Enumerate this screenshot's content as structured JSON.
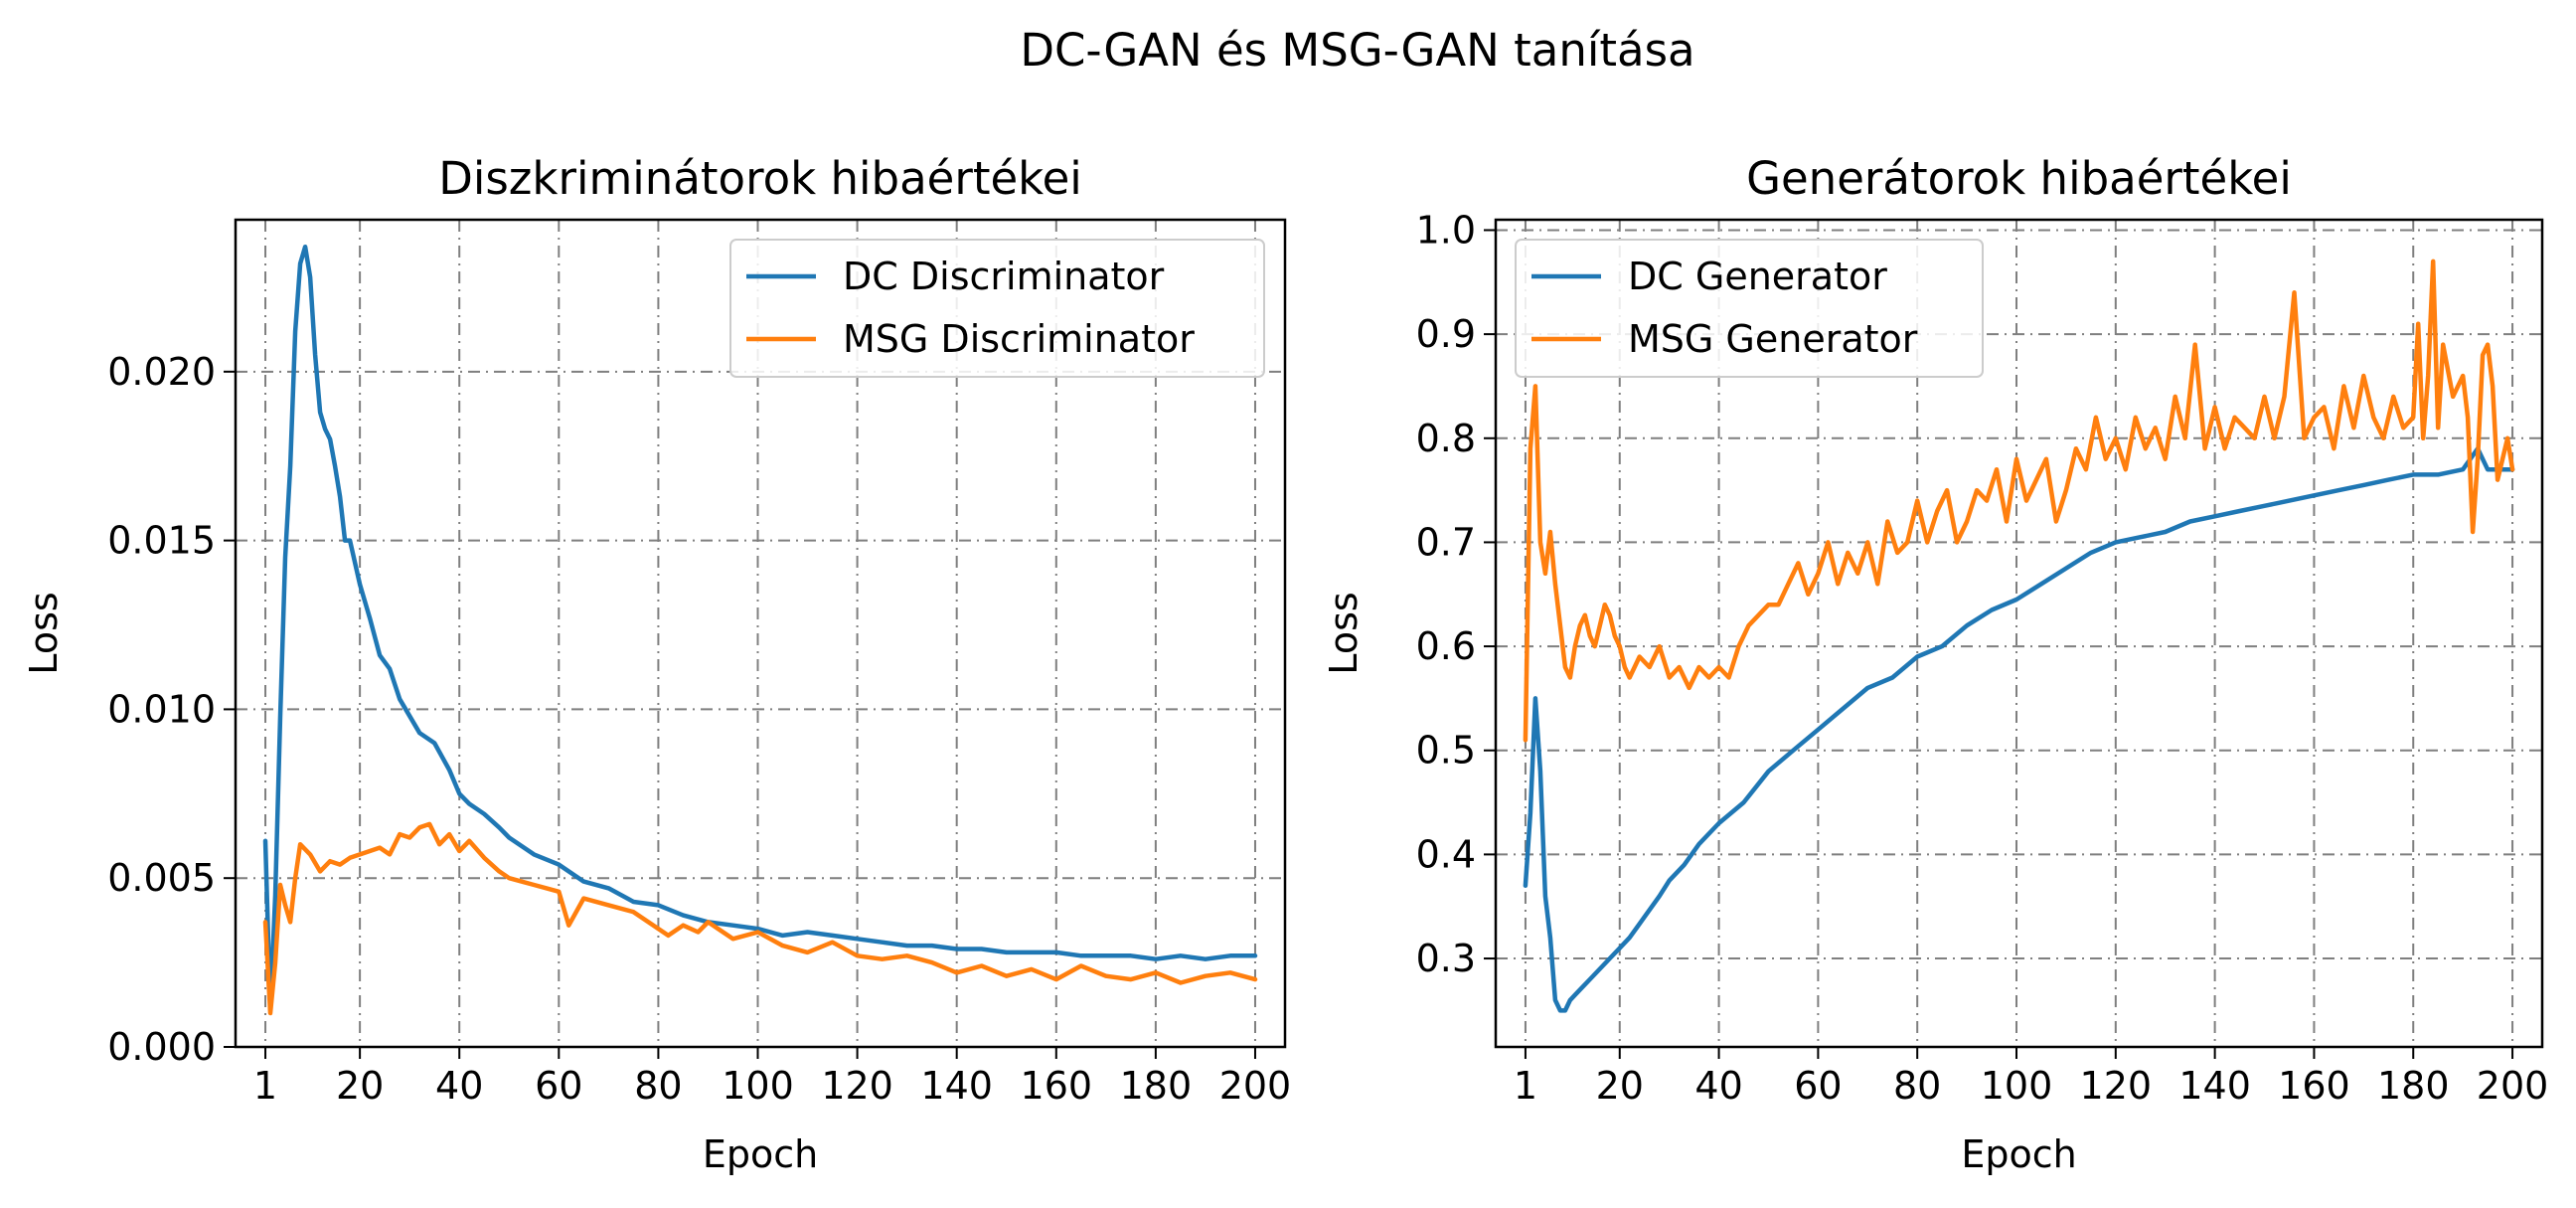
{
  "title": "DC-GAN és MSG-GAN tanítása",
  "colors": {
    "blue": "#1f77b4",
    "orange": "#ff7f0e"
  },
  "chart_data": [
    {
      "type": "line",
      "title": "Diszkriminátorok hibaértékei",
      "xlabel": "Epoch",
      "ylabel": "Loss",
      "xlim": [
        -5,
        206
      ],
      "ylim": [
        0.0,
        0.0245
      ],
      "xticks": [
        1,
        20,
        40,
        60,
        80,
        100,
        120,
        140,
        160,
        180,
        200
      ],
      "yticks": [
        0.0,
        0.005,
        0.01,
        0.015,
        0.02
      ],
      "ytick_labels": [
        "0.000",
        "0.005",
        "0.010",
        "0.015",
        "0.020"
      ],
      "grid": true,
      "legend": "upper right",
      "series": [
        {
          "name": "DC Discriminator",
          "color": "#1f77b4",
          "x": [
            1,
            2,
            3,
            4,
            5,
            6,
            7,
            8,
            9,
            10,
            11,
            12,
            13,
            14,
            15,
            16,
            17,
            18,
            20,
            22,
            24,
            26,
            28,
            30,
            32,
            35,
            38,
            40,
            42,
            45,
            48,
            50,
            55,
            60,
            65,
            70,
            75,
            80,
            85,
            90,
            95,
            100,
            105,
            110,
            115,
            120,
            125,
            130,
            135,
            140,
            145,
            150,
            155,
            160,
            165,
            170,
            175,
            180,
            185,
            190,
            195,
            200
          ],
          "y": [
            0.0061,
            0.0011,
            0.0045,
            0.0098,
            0.0145,
            0.0172,
            0.0212,
            0.0232,
            0.0237,
            0.0228,
            0.0205,
            0.0188,
            0.0183,
            0.018,
            0.0172,
            0.0163,
            0.015,
            0.015,
            0.0137,
            0.0127,
            0.0116,
            0.0112,
            0.0103,
            0.0098,
            0.0093,
            0.009,
            0.0082,
            0.0075,
            0.0072,
            0.0069,
            0.0065,
            0.0062,
            0.0057,
            0.0054,
            0.0049,
            0.0047,
            0.0043,
            0.0042,
            0.0039,
            0.0037,
            0.0036,
            0.0035,
            0.0033,
            0.0034,
            0.0033,
            0.0032,
            0.0031,
            0.003,
            0.003,
            0.0029,
            0.0029,
            0.0028,
            0.0028,
            0.0028,
            0.0027,
            0.0027,
            0.0027,
            0.0026,
            0.0027,
            0.0026,
            0.0027,
            0.0027
          ]
        },
        {
          "name": "MSG Discriminator",
          "color": "#ff7f0e",
          "x": [
            1,
            2,
            3,
            4,
            5,
            6,
            7,
            8,
            10,
            12,
            14,
            16,
            18,
            20,
            22,
            24,
            26,
            28,
            30,
            32,
            34,
            36,
            38,
            40,
            42,
            45,
            48,
            50,
            55,
            60,
            62,
            65,
            70,
            75,
            80,
            82,
            85,
            88,
            90,
            95,
            100,
            105,
            110,
            115,
            120,
            125,
            130,
            135,
            140,
            145,
            150,
            155,
            160,
            165,
            170,
            175,
            180,
            185,
            190,
            195,
            200
          ],
          "y": [
            0.0037,
            0.001,
            0.0025,
            0.0048,
            0.0042,
            0.0037,
            0.005,
            0.006,
            0.0057,
            0.0052,
            0.0055,
            0.0054,
            0.0056,
            0.0057,
            0.0058,
            0.0059,
            0.0057,
            0.0063,
            0.0062,
            0.0065,
            0.0066,
            0.006,
            0.0063,
            0.0058,
            0.0061,
            0.0056,
            0.0052,
            0.005,
            0.0048,
            0.0046,
            0.0036,
            0.0044,
            0.0042,
            0.004,
            0.0035,
            0.0033,
            0.0036,
            0.0034,
            0.0037,
            0.0032,
            0.0034,
            0.003,
            0.0028,
            0.0031,
            0.0027,
            0.0026,
            0.0027,
            0.0025,
            0.0022,
            0.0024,
            0.0021,
            0.0023,
            0.002,
            0.0024,
            0.0021,
            0.002,
            0.0022,
            0.0019,
            0.0021,
            0.0022,
            0.002
          ]
        }
      ]
    },
    {
      "type": "line",
      "title": "Generátorok hibaértékei",
      "xlabel": "Epoch",
      "ylabel": "Loss",
      "xlim": [
        -5,
        206
      ],
      "ylim": [
        0.215,
        1.01
      ],
      "xticks": [
        1,
        20,
        40,
        60,
        80,
        100,
        120,
        140,
        160,
        180,
        200
      ],
      "yticks": [
        0.3,
        0.4,
        0.5,
        0.6,
        0.7,
        0.8,
        0.9,
        1.0
      ],
      "ytick_labels": [
        "0.3",
        "0.4",
        "0.5",
        "0.6",
        "0.7",
        "0.8",
        "0.9",
        "1.0"
      ],
      "grid": true,
      "legend": "upper left",
      "series": [
        {
          "name": "DC Generator",
          "color": "#1f77b4",
          "x": [
            1,
            2,
            3,
            4,
            5,
            6,
            7,
            8,
            9,
            10,
            11,
            12,
            14,
            16,
            18,
            20,
            22,
            25,
            28,
            30,
            33,
            36,
            40,
            45,
            50,
            55,
            60,
            65,
            70,
            75,
            80,
            85,
            90,
            95,
            100,
            105,
            110,
            115,
            120,
            125,
            130,
            135,
            140,
            145,
            150,
            155,
            160,
            165,
            170,
            175,
            180,
            185,
            190,
            193,
            195,
            200
          ],
          "y": [
            0.37,
            0.44,
            0.55,
            0.48,
            0.36,
            0.32,
            0.26,
            0.25,
            0.25,
            0.26,
            0.265,
            0.27,
            0.28,
            0.29,
            0.3,
            0.31,
            0.32,
            0.34,
            0.36,
            0.375,
            0.39,
            0.41,
            0.43,
            0.45,
            0.48,
            0.5,
            0.52,
            0.54,
            0.56,
            0.57,
            0.59,
            0.6,
            0.62,
            0.635,
            0.645,
            0.66,
            0.675,
            0.69,
            0.7,
            0.705,
            0.71,
            0.72,
            0.725,
            0.73,
            0.735,
            0.74,
            0.745,
            0.75,
            0.755,
            0.76,
            0.765,
            0.765,
            0.77,
            0.79,
            0.77,
            0.77
          ]
        },
        {
          "name": "MSG Generator",
          "color": "#ff7f0e",
          "x": [
            1,
            2,
            3,
            4,
            5,
            6,
            7,
            8,
            9,
            10,
            11,
            12,
            13,
            14,
            15,
            16,
            17,
            18,
            19,
            20,
            21,
            22,
            24,
            26,
            28,
            30,
            32,
            34,
            36,
            38,
            40,
            42,
            44,
            46,
            48,
            50,
            52,
            54,
            56,
            58,
            60,
            62,
            64,
            66,
            68,
            70,
            72,
            74,
            76,
            78,
            80,
            82,
            84,
            86,
            88,
            90,
            92,
            94,
            96,
            98,
            100,
            102,
            104,
            106,
            108,
            110,
            112,
            114,
            116,
            118,
            120,
            122,
            124,
            126,
            128,
            130,
            132,
            134,
            136,
            138,
            140,
            142,
            144,
            146,
            148,
            150,
            152,
            154,
            156,
            158,
            160,
            162,
            164,
            166,
            168,
            170,
            172,
            174,
            176,
            178,
            180,
            181,
            182,
            183,
            184,
            185,
            186,
            188,
            190,
            191,
            192,
            193,
            194,
            195,
            196,
            197,
            198,
            199,
            200
          ],
          "y": [
            0.51,
            0.79,
            0.85,
            0.7,
            0.67,
            0.71,
            0.66,
            0.62,
            0.58,
            0.57,
            0.6,
            0.62,
            0.63,
            0.61,
            0.6,
            0.62,
            0.64,
            0.63,
            0.61,
            0.6,
            0.58,
            0.57,
            0.59,
            0.58,
            0.6,
            0.57,
            0.58,
            0.56,
            0.58,
            0.57,
            0.58,
            0.57,
            0.6,
            0.62,
            0.63,
            0.64,
            0.64,
            0.66,
            0.68,
            0.65,
            0.67,
            0.7,
            0.66,
            0.69,
            0.67,
            0.7,
            0.66,
            0.72,
            0.69,
            0.7,
            0.74,
            0.7,
            0.73,
            0.75,
            0.7,
            0.72,
            0.75,
            0.74,
            0.77,
            0.72,
            0.78,
            0.74,
            0.76,
            0.78,
            0.72,
            0.75,
            0.79,
            0.77,
            0.82,
            0.78,
            0.8,
            0.77,
            0.82,
            0.79,
            0.81,
            0.78,
            0.84,
            0.8,
            0.89,
            0.79,
            0.83,
            0.79,
            0.82,
            0.81,
            0.8,
            0.84,
            0.8,
            0.84,
            0.94,
            0.8,
            0.82,
            0.83,
            0.79,
            0.85,
            0.81,
            0.86,
            0.82,
            0.8,
            0.84,
            0.81,
            0.82,
            0.91,
            0.8,
            0.86,
            0.97,
            0.81,
            0.89,
            0.84,
            0.86,
            0.82,
            0.71,
            0.78,
            0.88,
            0.89,
            0.85,
            0.76,
            0.78,
            0.8,
            0.77
          ]
        }
      ]
    }
  ]
}
